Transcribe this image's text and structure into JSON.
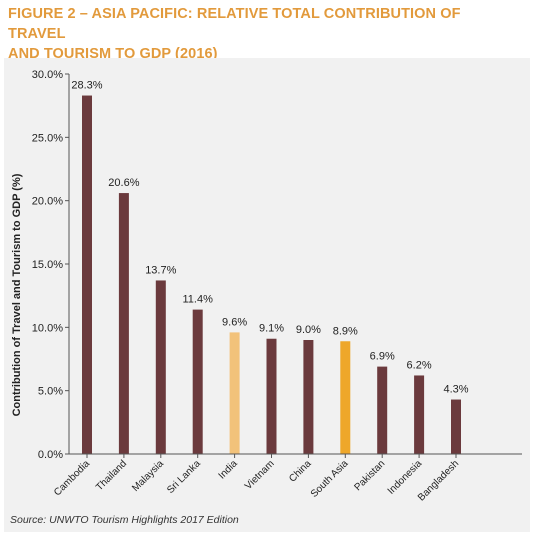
{
  "figure": {
    "title_line1": "FIGURE 2 – ASIA PACIFIC: RELATIVE TOTAL CONTRIBUTION OF TRAVEL",
    "title_line2": "AND TOURISM TO GDP (2016)",
    "source": "Source: UNWTO Tourism Highlights 2017 Edition"
  },
  "colors": {
    "title": "#e29a3c",
    "bar_default": "#6b3a3d",
    "bar_india": "#f2c27a",
    "bar_south_asia": "#eea72a",
    "panel_bg": "#f1f1f1"
  },
  "chart_data": {
    "type": "bar",
    "categories": [
      "Cambodia",
      "Thailand",
      "Malaysia",
      "Sri Lanka",
      "India",
      "Vietnam",
      "China",
      "South Asia",
      "Pakistan",
      "Indonesia",
      "Bangladesh"
    ],
    "values": [
      28.3,
      20.6,
      13.7,
      11.4,
      9.6,
      9.1,
      9.0,
      8.9,
      6.9,
      6.2,
      4.3
    ],
    "value_labels": [
      "28.3%",
      "20.6%",
      "13.7%",
      "11.4%",
      "9.6%",
      "9.1%",
      "9.0%",
      "8.9%",
      "6.9%",
      "6.2%",
      "4.3%"
    ],
    "bar_colors": [
      "#6b3a3d",
      "#6b3a3d",
      "#6b3a3d",
      "#6b3a3d",
      "#f2c27a",
      "#6b3a3d",
      "#6b3a3d",
      "#eea72a",
      "#6b3a3d",
      "#6b3a3d",
      "#6b3a3d"
    ],
    "ylabel": "Contribution of Travel and Tourism to GDP (%)",
    "xlabel": "",
    "ylim": [
      0,
      30
    ],
    "yticks": [
      0,
      5,
      10,
      15,
      20,
      25,
      30
    ],
    "ytick_labels": [
      "0.0%",
      "5.0%",
      "10.0%",
      "15.0%",
      "20.0%",
      "25.0%",
      "30.0%"
    ],
    "grid": false,
    "legend": "none"
  }
}
